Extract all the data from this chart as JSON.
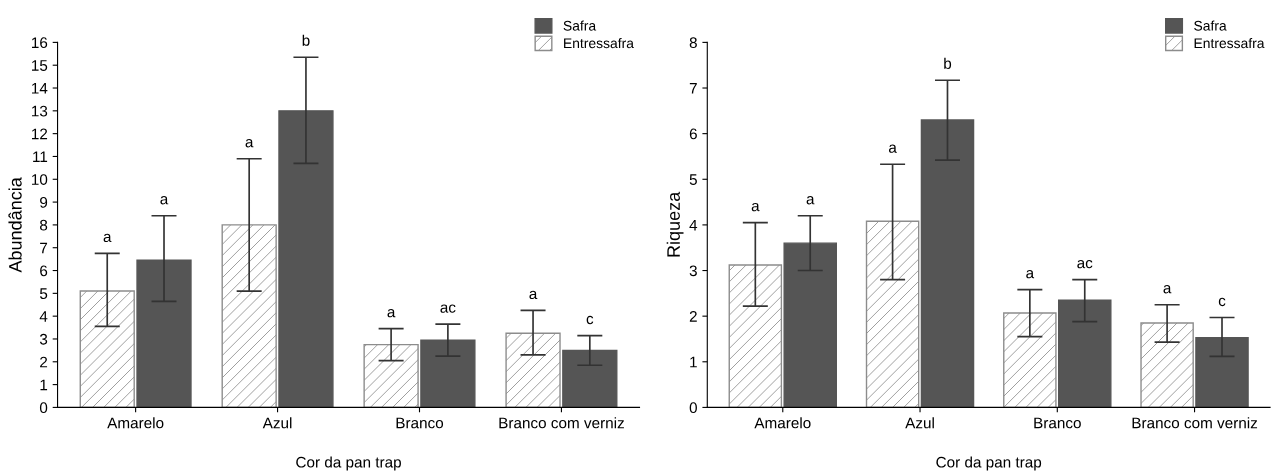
{
  "chart_data": [
    {
      "type": "bar",
      "xlabel": "Cor da pan trap",
      "ylabel": "Abundância",
      "categories": [
        "Amarelo",
        "Azul",
        "Branco",
        "Branco com verniz"
      ],
      "ylim": [
        0,
        16
      ],
      "yticks": [
        0,
        1,
        2,
        3,
        4,
        5,
        6,
        7,
        8,
        9,
        10,
        11,
        12,
        13,
        14,
        15,
        16
      ],
      "legend": "top right",
      "grid": false,
      "series": [
        {
          "name": "Entressafra",
          "color": "#8c8c8c",
          "values": [
            5.1,
            8.0,
            2.75,
            3.25
          ],
          "errors": [
            [
              3.55,
              6.75
            ],
            [
              5.1,
              10.9
            ],
            [
              2.05,
              3.45
            ],
            [
              2.3,
              4.25
            ]
          ]
        },
        {
          "name": "Safra",
          "color": "#555555",
          "values": [
            6.45,
            13.0,
            2.95,
            2.5
          ],
          "errors": [
            [
              4.65,
              8.4
            ],
            [
              10.7,
              15.35
            ],
            [
              2.25,
              3.65
            ],
            [
              1.85,
              3.15
            ]
          ]
        }
      ],
      "annotations": [
        "a",
        "a",
        "a",
        "b",
        "a",
        "ac",
        "a",
        "c"
      ]
    },
    {
      "type": "bar",
      "xlabel": "Cor da pan trap",
      "ylabel": "Riqueza",
      "categories": [
        "Amarelo",
        "Azul",
        "Branco",
        "Branco com verniz"
      ],
      "ylim": [
        0,
        8
      ],
      "yticks": [
        0,
        1,
        2,
        3,
        4,
        5,
        6,
        7,
        8
      ],
      "legend": "top right",
      "grid": false,
      "series": [
        {
          "name": "Entressafra",
          "color": "#8c8c8c",
          "values": [
            3.12,
            4.08,
            2.07,
            1.85
          ],
          "errors": [
            [
              2.22,
              4.05
            ],
            [
              2.8,
              5.33
            ],
            [
              1.55,
              2.58
            ],
            [
              1.43,
              2.25
            ]
          ]
        },
        {
          "name": "Safra",
          "color": "#555555",
          "values": [
            3.6,
            6.3,
            2.35,
            1.53
          ],
          "errors": [
            [
              3.0,
              4.2
            ],
            [
              5.42,
              7.17
            ],
            [
              1.88,
              2.8
            ],
            [
              1.12,
              1.97
            ]
          ]
        }
      ],
      "annotations": [
        "a",
        "a",
        "a",
        "b",
        "a",
        "ac",
        "a",
        "c"
      ]
    }
  ]
}
